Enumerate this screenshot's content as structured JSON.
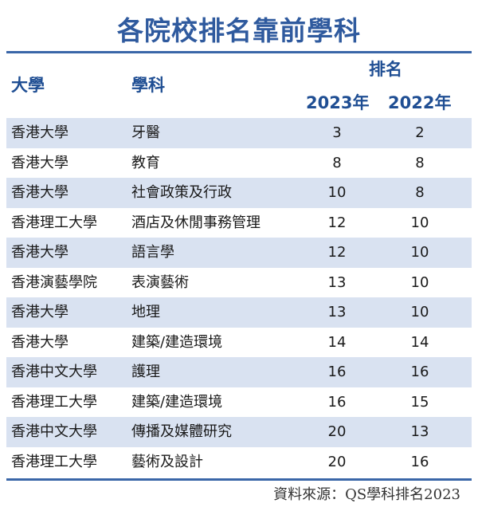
{
  "title": "各院校排名靠前學科",
  "header": {
    "university": "大學",
    "subject": "學科",
    "ranking": "排名",
    "year_2023": "2023年",
    "year_2022": "2022年"
  },
  "rows": [
    {
      "university": "香港大學",
      "subject": "牙醫",
      "rank_2023": "3",
      "rank_2022": "2"
    },
    {
      "university": "香港大學",
      "subject": "教育",
      "rank_2023": "8",
      "rank_2022": "8"
    },
    {
      "university": "香港大學",
      "subject": "社會政策及行政",
      "rank_2023": "10",
      "rank_2022": "8"
    },
    {
      "university": "香港理工大學",
      "subject": "酒店及休閒事務管理",
      "rank_2023": "12",
      "rank_2022": "10"
    },
    {
      "university": "香港大學",
      "subject": "語言學",
      "rank_2023": "12",
      "rank_2022": "10"
    },
    {
      "university": "香港演藝學院",
      "subject": "表演藝術",
      "rank_2023": "13",
      "rank_2022": "10"
    },
    {
      "university": "香港大學",
      "subject": "地理",
      "rank_2023": "13",
      "rank_2022": "10"
    },
    {
      "university": "香港大學",
      "subject": "建築/建造環境",
      "rank_2023": "14",
      "rank_2022": "14"
    },
    {
      "university": "香港中文大學",
      "subject": "護理",
      "rank_2023": "16",
      "rank_2022": "16"
    },
    {
      "university": "香港理工大學",
      "subject": "建築/建造環境",
      "rank_2023": "16",
      "rank_2022": "15"
    },
    {
      "university": "香港中文大學",
      "subject": "傳播及媒體研究",
      "rank_2023": "20",
      "rank_2022": "13"
    },
    {
      "university": "香港理工大學",
      "subject": "藝術及設計",
      "rank_2023": "20",
      "rank_2022": "16"
    }
  ],
  "source": "資料來源：QS學科排名2023",
  "colors": {
    "accent": "#2f5a9e",
    "row_shade": "#d9e2f1"
  }
}
